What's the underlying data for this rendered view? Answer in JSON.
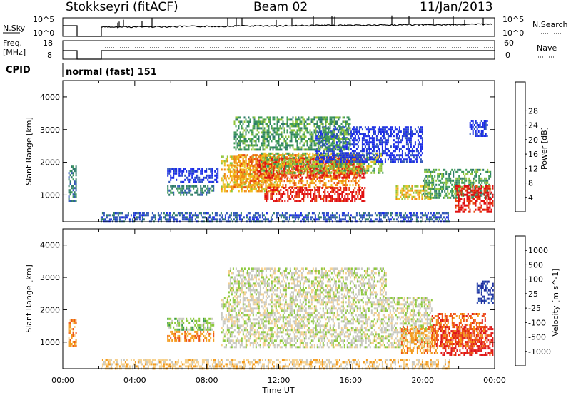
{
  "header": {
    "station": "Stokkseyri (fitACF)",
    "beam": "Beam 02",
    "date": "11/Jan/2013"
  },
  "top_panels": {
    "nsky_label": "N.Sky",
    "nsky_ticks": [
      "10^5",
      "10^0"
    ],
    "nsearch_label": "N.Search",
    "nsearch_ticks": [
      "10^5",
      "10^0"
    ],
    "freq_label": "Freq.",
    "freq_unit": "[MHz]",
    "freq_ticks": [
      "18",
      "8"
    ],
    "nave_label": "Nave",
    "nave_ticks": [
      "60",
      "0"
    ],
    "cpid_label": "CPID",
    "cpid_text": "normal (fast) 151"
  },
  "colors": {
    "power": [
      "#1a2ce6",
      "#3056b8",
      "#2e7a6a",
      "#3e9a58",
      "#90c43a",
      "#f0c020",
      "#f08a10",
      "#e84a10",
      "#e01010"
    ],
    "velocity": [
      "#e01818",
      "#ee5414",
      "#f49a1c",
      "#f6d08c",
      "#c8c8c0",
      "#8cc83c",
      "#3a9a4a",
      "#2e5ab4",
      "#1e30a0"
    ]
  },
  "chart_data": [
    {
      "type": "heatmap",
      "quantity": "power",
      "ylabel": "Slant Range [km]",
      "xlabel": "",
      "ylim": [
        180,
        4500
      ],
      "yticks": [
        "1000",
        "2000",
        "3000",
        "4000"
      ],
      "xticks": [
        "00:00",
        "04:00",
        "08:00",
        "12:00",
        "16:00",
        "20:00",
        "00:00"
      ],
      "colorbar_label": "Power [dB]",
      "colorbar_ticks": [
        "4",
        "8",
        "12",
        "16",
        "20",
        "24",
        "28"
      ],
      "regions": [
        {
          "t0": 0.3,
          "t1": 0.7,
          "r0": 800,
          "r1": 1900,
          "level": 2
        },
        {
          "t0": 2.1,
          "t1": 21.5,
          "r0": 200,
          "r1": 480,
          "level": 1
        },
        {
          "t0": 5.8,
          "t1": 8.6,
          "r0": 1400,
          "r1": 1820,
          "level": 0
        },
        {
          "t0": 5.8,
          "t1": 8.4,
          "r0": 1000,
          "r1": 1300,
          "level": 2
        },
        {
          "t0": 8.8,
          "t1": 12.0,
          "r0": 1100,
          "r1": 2200,
          "level": 5
        },
        {
          "t0": 9.5,
          "t1": 16.5,
          "r0": 1250,
          "r1": 2250,
          "level": 6
        },
        {
          "t0": 10.8,
          "t1": 16.8,
          "r0": 1500,
          "r1": 2150,
          "level": 8
        },
        {
          "t0": 11.0,
          "t1": 17.8,
          "r0": 1700,
          "r1": 2300,
          "level": 4
        },
        {
          "t0": 11.2,
          "t1": 16.8,
          "r0": 850,
          "r1": 1250,
          "level": 8
        },
        {
          "t0": 14.0,
          "t1": 20.0,
          "r0": 2000,
          "r1": 3100,
          "level": 0
        },
        {
          "t0": 9.5,
          "t1": 16.0,
          "r0": 2400,
          "r1": 3400,
          "level": 3
        },
        {
          "t0": 18.5,
          "t1": 20.5,
          "r0": 900,
          "r1": 1300,
          "level": 5
        },
        {
          "t0": 20.0,
          "t1": 23.8,
          "r0": 900,
          "r1": 1800,
          "level": 3
        },
        {
          "t0": 21.8,
          "t1": 23.9,
          "r0": 500,
          "r1": 1300,
          "level": 8
        },
        {
          "t0": 22.6,
          "t1": 23.6,
          "r0": 2800,
          "r1": 3300,
          "level": 0
        }
      ]
    },
    {
      "type": "heatmap",
      "quantity": "velocity",
      "ylabel": "Slant Range [km]",
      "xlabel": "Time UT",
      "ylim": [
        180,
        4500
      ],
      "yticks": [
        "1000",
        "2000",
        "3000",
        "4000"
      ],
      "xticks": [
        "00:00",
        "04:00",
        "08:00",
        "12:00",
        "16:00",
        "20:00",
        "00:00"
      ],
      "colorbar_label": "Velocity [m s^-1]",
      "colorbar_ticks": [
        "1000",
        "500",
        "100",
        "25",
        "-25",
        "-100",
        "-500",
        "-1000"
      ],
      "regions": [
        {
          "t0": 0.3,
          "t1": 0.7,
          "r0": 900,
          "r1": 1700,
          "level": 2
        },
        {
          "t0": 2.1,
          "t1": 21.5,
          "r0": 200,
          "r1": 480,
          "level": 3
        },
        {
          "t0": 5.8,
          "t1": 8.4,
          "r0": 1400,
          "r1": 1750,
          "level": 5
        },
        {
          "t0": 5.8,
          "t1": 8.4,
          "r0": 1050,
          "r1": 1350,
          "level": 2
        },
        {
          "t0": 8.8,
          "t1": 20.5,
          "r0": 850,
          "r1": 2400,
          "level": 4
        },
        {
          "t0": 9.2,
          "t1": 18.0,
          "r0": 2400,
          "r1": 3300,
          "level": 4
        },
        {
          "t0": 18.8,
          "t1": 20.8,
          "r0": 700,
          "r1": 1500,
          "level": 2
        },
        {
          "t0": 21.0,
          "t1": 23.9,
          "r0": 600,
          "r1": 1500,
          "level": 0
        },
        {
          "t0": 20.5,
          "t1": 23.5,
          "r0": 900,
          "r1": 1900,
          "level": 1
        },
        {
          "t0": 23.0,
          "t1": 23.9,
          "r0": 2200,
          "r1": 2900,
          "level": 8
        }
      ]
    }
  ]
}
